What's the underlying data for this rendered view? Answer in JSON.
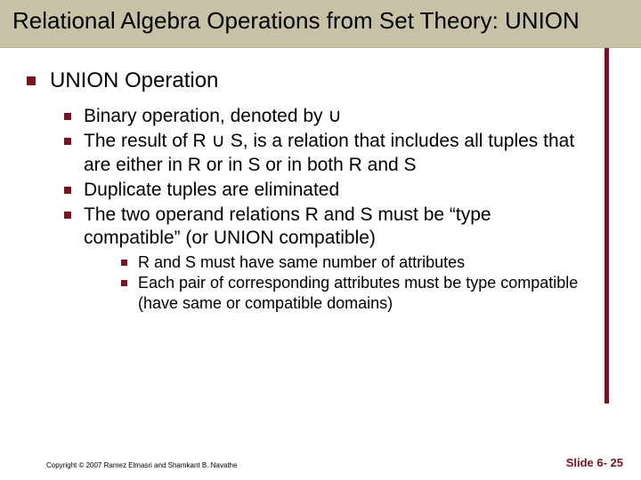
{
  "colors": {
    "title_bg": "#c7c1a5",
    "accent": "#7a1320",
    "text": "#000000",
    "page_bg": "#ffffff"
  },
  "typography": {
    "title_fontsize": 26,
    "lvl1_fontsize": 24,
    "lvl2_fontsize": 21,
    "lvl3_fontsize": 18,
    "footer_fontsize": 8,
    "slidenum_fontsize": 13,
    "font_family": "Arial"
  },
  "title": "Relational Algebra Operations from Set Theory: UNION",
  "lvl1": {
    "text": "UNION Operation"
  },
  "lvl2": [
    {
      "text": "Binary operation, denoted by ∪"
    },
    {
      "text": "The result of R ∪ S, is a relation that includes all tuples that are either in R or in S or in both R and S"
    },
    {
      "text": "Duplicate tuples are eliminated"
    },
    {
      "text": "The two operand relations R and S must be “type compatible” (or UNION compatible)"
    }
  ],
  "lvl3": [
    {
      "text": "R and S must have same number of attributes"
    },
    {
      "text": "Each pair of corresponding attributes must be type compatible (have same or compatible domains)"
    }
  ],
  "footer": {
    "copyright": "Copyright © 2007 Ramez Elmasri and Shamkant B. Navathe",
    "slide": "Slide 6- 25"
  }
}
